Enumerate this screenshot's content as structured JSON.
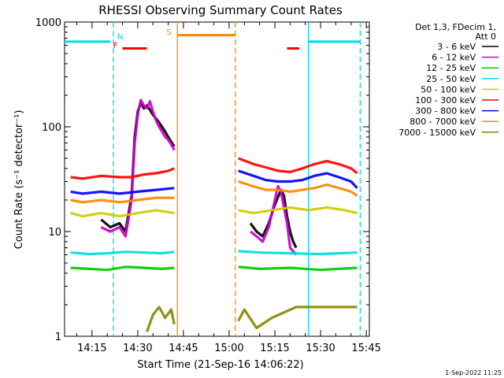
{
  "chart_data": {
    "type": "line",
    "title": "RHESSI Observing Summary Count Rates",
    "ylabel": "Count Rate (s⁻¹ detector⁻¹)",
    "xlabel": "Start Time (21-Sep-16 14:06:22)",
    "y_scale": "log",
    "ylim": [
      1,
      1000
    ],
    "y_ticks": [
      {
        "value": 1,
        "label": "1"
      },
      {
        "value": 10,
        "label": "10"
      },
      {
        "value": 100,
        "label": "100"
      },
      {
        "value": 1000,
        "label": "1000"
      }
    ],
    "xlim": [
      "14:06",
      "15:46"
    ],
    "x_ticks": [
      "14:15",
      "14:30",
      "14:45",
      "15:00",
      "15:15",
      "15:30",
      "15:45"
    ],
    "legend_header": [
      "Det 1,3, FDecim 1,",
      "Att 0"
    ],
    "legend_position": "right",
    "date_stamp": "1-Sep-2022 11:25",
    "segments": [
      {
        "start": "14:06",
        "end": "14:43"
      },
      {
        "start": "15:02",
        "end": "15:43"
      }
    ],
    "series": [
      {
        "name": "3 - 6 keV",
        "color": "#000000",
        "points": [
          [
            "14:18",
            13
          ],
          [
            "14:21",
            11
          ],
          [
            "14:24",
            12
          ],
          [
            "14:26",
            10
          ],
          [
            "14:28",
            22
          ],
          [
            "14:29",
            80
          ],
          [
            "14:30",
            140
          ],
          [
            "14:31",
            170
          ],
          [
            "14:32",
            150
          ],
          [
            "14:33",
            160
          ],
          [
            "14:34",
            145
          ],
          [
            "14:35",
            130
          ],
          [
            "14:36",
            120
          ],
          [
            "14:37",
            110
          ],
          [
            "14:38",
            100
          ],
          [
            "14:39",
            90
          ],
          [
            "14:40",
            80
          ],
          [
            "14:41",
            72
          ],
          [
            "14:42",
            65
          ],
          [
            "15:07",
            12
          ],
          [
            "15:09",
            10
          ],
          [
            "15:11",
            9
          ],
          [
            "15:13",
            12
          ],
          [
            "15:15",
            18
          ],
          [
            "15:17",
            25
          ],
          [
            "15:18",
            22
          ],
          [
            "15:19",
            14
          ],
          [
            "15:20",
            10
          ],
          [
            "15:21",
            8
          ],
          [
            "15:22",
            7
          ]
        ]
      },
      {
        "name": "6 - 12 keV",
        "color": "#cc00cc",
        "points": [
          [
            "14:18",
            11
          ],
          [
            "14:21",
            10
          ],
          [
            "14:24",
            11
          ],
          [
            "14:26",
            9
          ],
          [
            "14:28",
            20
          ],
          [
            "14:29",
            70
          ],
          [
            "14:30",
            130
          ],
          [
            "14:31",
            180
          ],
          [
            "14:32",
            160
          ],
          [
            "14:33",
            150
          ],
          [
            "14:34",
            175
          ],
          [
            "14:35",
            140
          ],
          [
            "14:36",
            115
          ],
          [
            "14:37",
            100
          ],
          [
            "14:38",
            90
          ],
          [
            "14:39",
            80
          ],
          [
            "14:40",
            75
          ],
          [
            "14:41",
            68
          ],
          [
            "14:42",
            60
          ],
          [
            "15:07",
            10
          ],
          [
            "15:09",
            9
          ],
          [
            "15:11",
            8
          ],
          [
            "15:13",
            11
          ],
          [
            "15:15",
            20
          ],
          [
            "15:16",
            27
          ],
          [
            "15:17",
            24
          ],
          [
            "15:19",
            12
          ],
          [
            "15:20",
            7
          ],
          [
            "15:22",
            6
          ]
        ]
      },
      {
        "name": "12 - 25 keV",
        "color": "#00cc00",
        "points": [
          [
            "14:08",
            4.5
          ],
          [
            "14:14",
            4.4
          ],
          [
            "14:20",
            4.3
          ],
          [
            "14:26",
            4.6
          ],
          [
            "14:32",
            4.5
          ],
          [
            "14:38",
            4.4
          ],
          [
            "14:42",
            4.5
          ],
          [
            "15:03",
            4.6
          ],
          [
            "15:10",
            4.4
          ],
          [
            "15:20",
            4.5
          ],
          [
            "15:30",
            4.3
          ],
          [
            "15:36",
            4.4
          ],
          [
            "15:42",
            4.5
          ]
        ]
      },
      {
        "name": "25 - 50 keV",
        "color": "#00dddd",
        "points": [
          [
            "14:08",
            6.3
          ],
          [
            "14:14",
            6.1
          ],
          [
            "14:20",
            6.2
          ],
          [
            "14:26",
            6.4
          ],
          [
            "14:32",
            6.3
          ],
          [
            "14:38",
            6.2
          ],
          [
            "14:42",
            6.4
          ],
          [
            "15:03",
            6.5
          ],
          [
            "15:10",
            6.3
          ],
          [
            "15:20",
            6.2
          ],
          [
            "15:30",
            6.1
          ],
          [
            "15:36",
            6.2
          ],
          [
            "15:42",
            6.3
          ]
        ]
      },
      {
        "name": "50 - 100 keV",
        "color": "#cccc00",
        "points": [
          [
            "14:08",
            15
          ],
          [
            "14:12",
            14
          ],
          [
            "14:18",
            15
          ],
          [
            "14:24",
            14
          ],
          [
            "14:30",
            15
          ],
          [
            "14:36",
            16
          ],
          [
            "14:42",
            15
          ],
          [
            "15:03",
            16
          ],
          [
            "15:08",
            15
          ],
          [
            "15:14",
            16
          ],
          [
            "15:20",
            17
          ],
          [
            "15:26",
            16
          ],
          [
            "15:32",
            17
          ],
          [
            "15:38",
            16
          ],
          [
            "15:42",
            15
          ]
        ]
      },
      {
        "name": "100 - 300 keV",
        "color": "#ff0000",
        "points": [
          [
            "14:08",
            33
          ],
          [
            "14:12",
            32
          ],
          [
            "14:18",
            34
          ],
          [
            "14:24",
            33
          ],
          [
            "14:28",
            33
          ],
          [
            "14:32",
            35
          ],
          [
            "14:36",
            36
          ],
          [
            "14:40",
            38
          ],
          [
            "14:42",
            40
          ],
          [
            "15:03",
            50
          ],
          [
            "15:08",
            44
          ],
          [
            "15:12",
            41
          ],
          [
            "15:16",
            38
          ],
          [
            "15:20",
            37
          ],
          [
            "15:24",
            40
          ],
          [
            "15:28",
            44
          ],
          [
            "15:32",
            47
          ],
          [
            "15:36",
            44
          ],
          [
            "15:40",
            40
          ],
          [
            "15:42",
            36
          ]
        ]
      },
      {
        "name": "300 - 800 keV",
        "color": "#0000ff",
        "points": [
          [
            "14:08",
            24
          ],
          [
            "14:12",
            23
          ],
          [
            "14:18",
            24
          ],
          [
            "14:24",
            23
          ],
          [
            "14:30",
            24
          ],
          [
            "14:36",
            25
          ],
          [
            "14:42",
            26
          ],
          [
            "15:03",
            38
          ],
          [
            "15:08",
            34
          ],
          [
            "15:12",
            31
          ],
          [
            "15:16",
            30
          ],
          [
            "15:20",
            30
          ],
          [
            "15:24",
            31
          ],
          [
            "15:28",
            34
          ],
          [
            "15:32",
            36
          ],
          [
            "15:36",
            33
          ],
          [
            "15:40",
            30
          ],
          [
            "15:42",
            26
          ]
        ]
      },
      {
        "name": "800 - 7000 keV",
        "color": "#ff8800",
        "points": [
          [
            "14:08",
            20
          ],
          [
            "14:12",
            19
          ],
          [
            "14:18",
            20
          ],
          [
            "14:24",
            19
          ],
          [
            "14:30",
            20
          ],
          [
            "14:36",
            21
          ],
          [
            "14:42",
            21
          ],
          [
            "15:03",
            30
          ],
          [
            "15:08",
            27
          ],
          [
            "15:12",
            25
          ],
          [
            "15:16",
            25
          ],
          [
            "15:20",
            24
          ],
          [
            "15:24",
            25
          ],
          [
            "15:28",
            26
          ],
          [
            "15:32",
            28
          ],
          [
            "15:36",
            26
          ],
          [
            "15:40",
            24
          ],
          [
            "15:42",
            22
          ]
        ]
      },
      {
        "name": "7000 - 15000 keV",
        "color": "#888800",
        "points": [
          [
            "14:33",
            1.1
          ],
          [
            "14:35",
            1.6
          ],
          [
            "14:37",
            1.9
          ],
          [
            "14:39",
            1.5
          ],
          [
            "14:41",
            1.8
          ],
          [
            "14:42",
            1.3
          ],
          [
            "15:03",
            1.4
          ],
          [
            "15:05",
            1.8
          ],
          [
            "15:09",
            1.2
          ],
          [
            "15:14",
            1.5
          ],
          [
            "15:22",
            1.9
          ],
          [
            "15:26",
            1.9
          ],
          [
            "15:30",
            1.9
          ],
          [
            "15:34",
            1.9
          ],
          [
            "15:38",
            1.9
          ],
          [
            "15:42",
            1.9
          ]
        ]
      }
    ],
    "annotations": [
      {
        "label": "N",
        "color": "#00dddd",
        "marker": "dashed-vline",
        "time": "14:22"
      },
      {
        "label": "F",
        "color": "#ff0000",
        "marker": "text",
        "time": "14:23"
      },
      {
        "label": "S",
        "color": "#ff8800",
        "marker": "text",
        "time": "14:42"
      }
    ],
    "state_bars": [
      {
        "color": "#00dddd",
        "start": "14:06",
        "end": "14:21",
        "value": 650
      },
      {
        "color": "#00dddd",
        "start": "15:26",
        "end": "15:43",
        "value": 650
      },
      {
        "color": "#ff0000",
        "start": "14:25",
        "end": "14:33",
        "value": 560
      },
      {
        "color": "#ff0000",
        "start": "15:19",
        "end": "15:23",
        "value": 560
      },
      {
        "color": "#ff8800",
        "start": "14:43",
        "end": "15:02",
        "value": 750
      }
    ],
    "vertical_lines": [
      {
        "time": "14:22",
        "color": "#00dddd",
        "style": "dashed"
      },
      {
        "time": "14:43",
        "color": "#ff8800",
        "style": "solid"
      },
      {
        "time": "15:02",
        "color": "#ff8800",
        "style": "dashed"
      },
      {
        "time": "15:26",
        "color": "#00dddd",
        "style": "solid"
      },
      {
        "time": "15:43",
        "color": "#00dddd",
        "style": "dashed"
      }
    ]
  }
}
